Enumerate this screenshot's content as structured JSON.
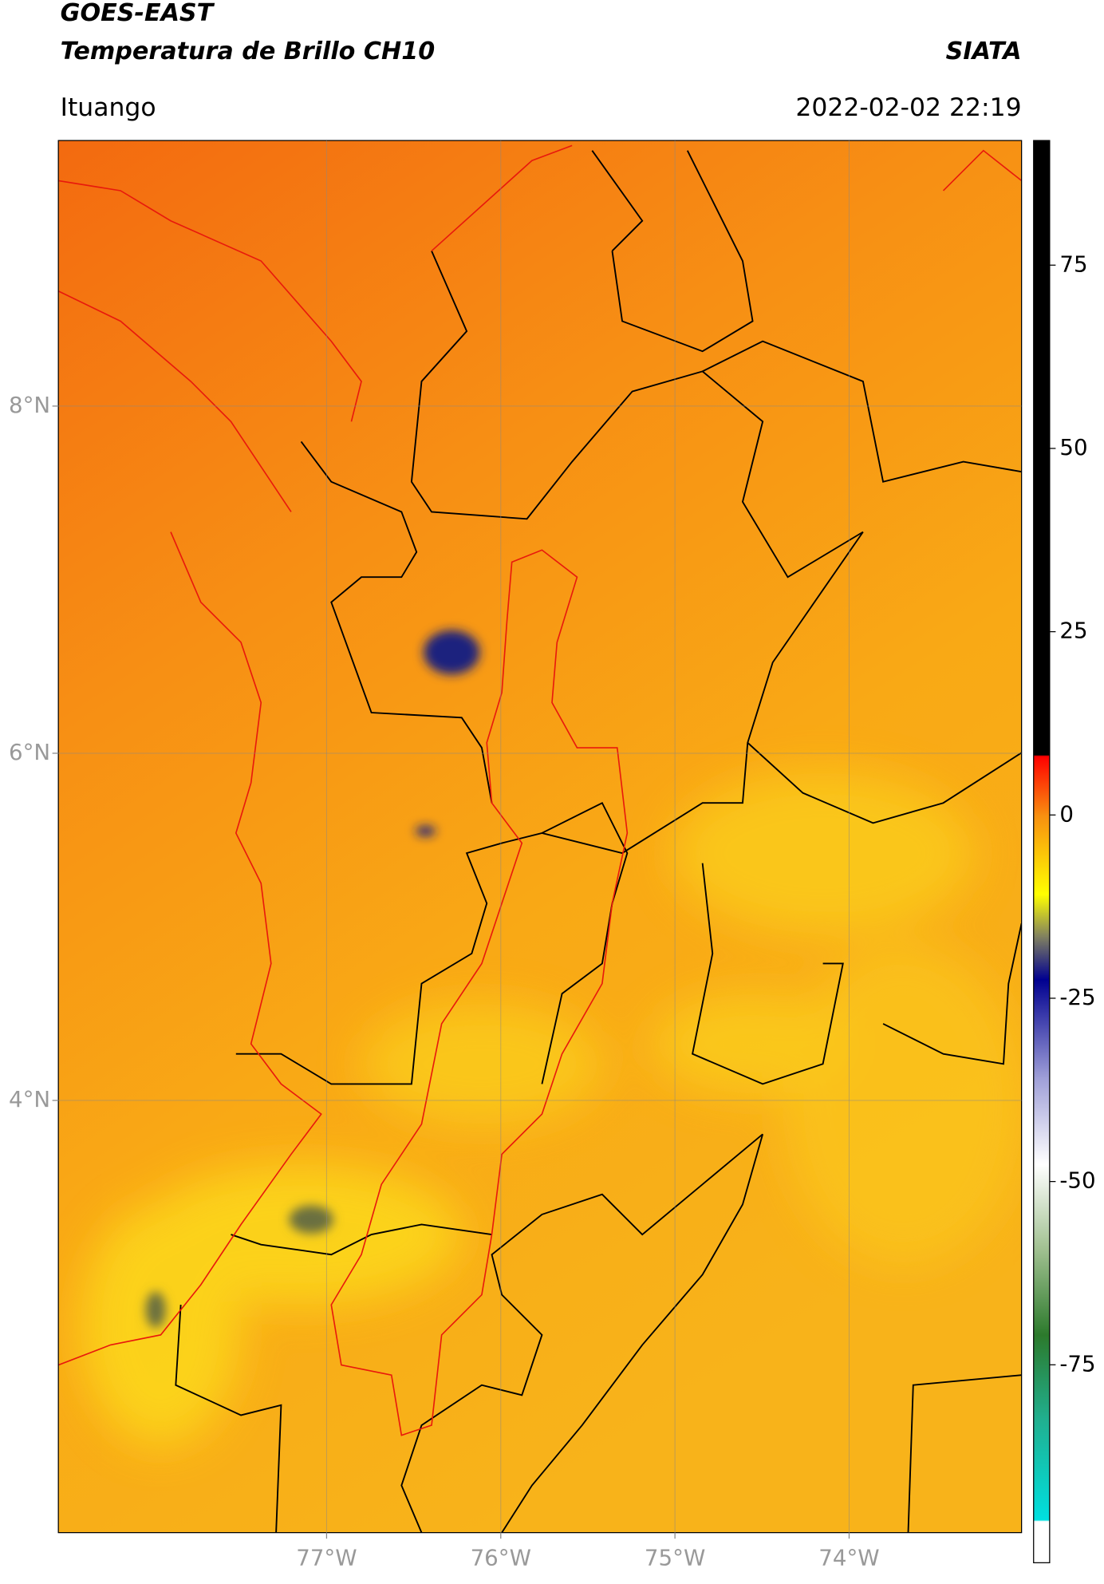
{
  "chart_data": {
    "type": "map",
    "title": "GOES-EAST",
    "subtitle": "Temperatura de Brillo CH10",
    "source": "SIATA",
    "location": "Ituango",
    "timestamp": "2022-02-02 22:19",
    "xlim": [
      -78.54,
      -73.01
    ],
    "ylim": [
      1.51,
      9.53
    ],
    "xticks": [
      {
        "value": -77,
        "label": "77°W"
      },
      {
        "value": -76,
        "label": "76°W"
      },
      {
        "value": -75,
        "label": "75°W"
      },
      {
        "value": -74,
        "label": "74°W"
      }
    ],
    "yticks": [
      {
        "value": 8,
        "label": "8°N"
      },
      {
        "value": 6,
        "label": "6°N"
      },
      {
        "value": 4,
        "label": "4°N"
      }
    ],
    "grid": true,
    "colorbar": {
      "lim": [
        -102,
        92
      ],
      "ticks": [
        75,
        50,
        25,
        0,
        -25,
        -50,
        -75
      ]
    }
  }
}
